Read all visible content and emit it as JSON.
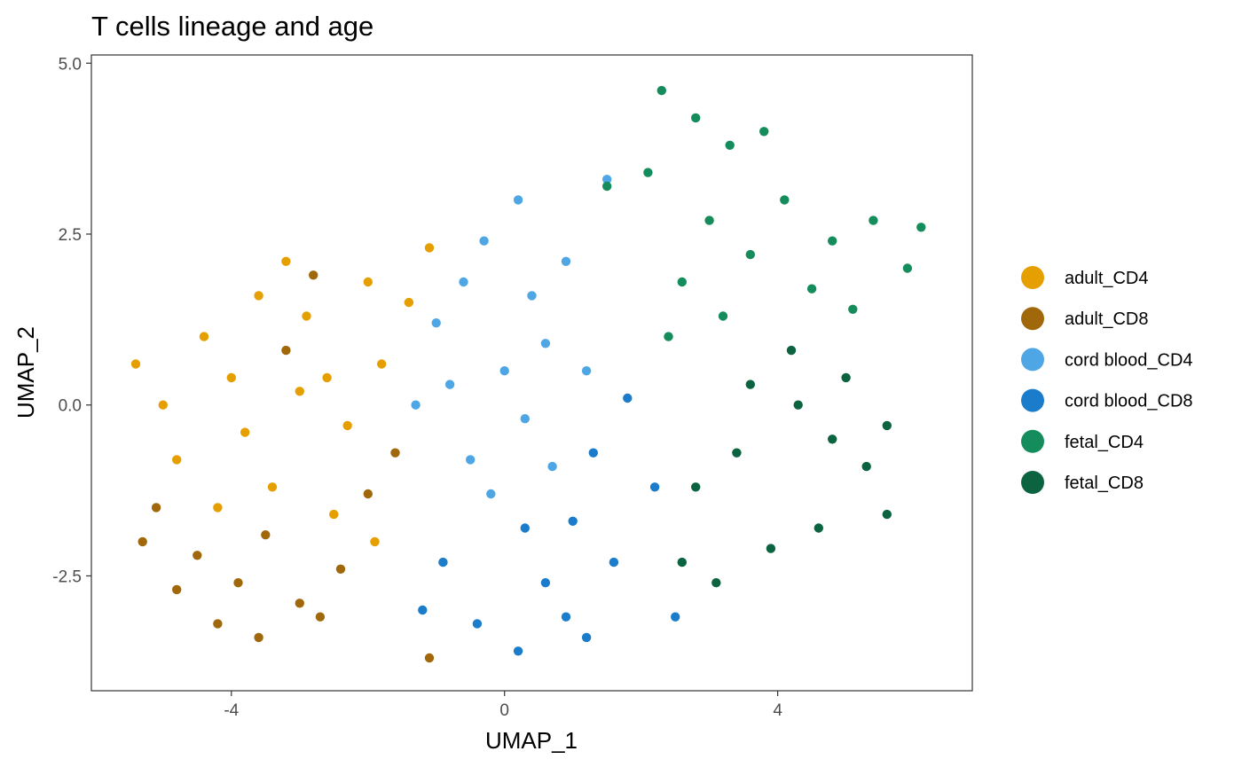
{
  "chart_data": {
    "type": "scatter",
    "title": "T cells lineage and age",
    "xlabel": "UMAP_1",
    "ylabel": "UMAP_2",
    "xlim": [
      -6.05,
      6.85
    ],
    "ylim": [
      -4.18,
      5.12
    ],
    "x_ticks": [
      {
        "value": -4,
        "label": "-4"
      },
      {
        "value": 0,
        "label": "0"
      },
      {
        "value": 4,
        "label": "4"
      }
    ],
    "y_ticks": [
      {
        "value": 5.0,
        "label": "5.0"
      },
      {
        "value": 2.5,
        "label": "2.5"
      },
      {
        "value": 0.0,
        "label": "0.0"
      },
      {
        "value": -2.5,
        "label": "-2.5"
      }
    ],
    "grid": false,
    "legend_position": "right",
    "series": [
      {
        "name": "adult_CD4",
        "color": "#E69F00",
        "points": [
          [
            -5.0,
            0.0
          ],
          [
            -4.4,
            1.0
          ],
          [
            -3.6,
            1.6
          ],
          [
            -3.2,
            2.1
          ],
          [
            -2.9,
            1.3
          ],
          [
            -2.6,
            0.4
          ],
          [
            -2.3,
            -0.3
          ],
          [
            -1.8,
            0.6
          ],
          [
            -1.4,
            1.5
          ],
          [
            -1.1,
            2.3
          ],
          [
            -4.8,
            -0.8
          ],
          [
            -4.2,
            -1.5
          ],
          [
            -3.4,
            -1.2
          ],
          [
            -2.5,
            -1.6
          ],
          [
            -1.9,
            -2.0
          ],
          [
            -5.4,
            0.6
          ],
          [
            -3.0,
            0.2
          ],
          [
            -2.0,
            1.8
          ],
          [
            -4.0,
            0.4
          ],
          [
            -3.8,
            -0.4
          ]
        ]
      },
      {
        "name": "adult_CD8",
        "color": "#A0680A",
        "points": [
          [
            -5.1,
            -1.5
          ],
          [
            -4.8,
            -2.7
          ],
          [
            -4.2,
            -3.2
          ],
          [
            -3.6,
            -3.4
          ],
          [
            -3.0,
            -2.9
          ],
          [
            -2.4,
            -2.4
          ],
          [
            -2.0,
            -1.3
          ],
          [
            -3.5,
            -1.9
          ],
          [
            -4.5,
            -2.2
          ],
          [
            -3.2,
            0.8
          ],
          [
            -2.8,
            1.9
          ],
          [
            -1.6,
            -0.7
          ],
          [
            -5.3,
            -2.0
          ],
          [
            -2.7,
            -3.1
          ],
          [
            -3.9,
            -2.6
          ],
          [
            -1.1,
            -3.7
          ]
        ]
      },
      {
        "name": "cord blood_CD4",
        "color": "#4FA6E4",
        "points": [
          [
            -1.0,
            1.2
          ],
          [
            -0.8,
            0.3
          ],
          [
            -0.5,
            -0.8
          ],
          [
            -0.3,
            2.4
          ],
          [
            0.2,
            3.0
          ],
          [
            0.4,
            1.6
          ],
          [
            0.6,
            0.9
          ],
          [
            0.3,
            -0.2
          ],
          [
            -0.2,
            -1.3
          ],
          [
            0.9,
            2.1
          ],
          [
            1.2,
            0.5
          ],
          [
            0.7,
            -0.9
          ],
          [
            -0.6,
            1.8
          ],
          [
            1.5,
            3.3
          ],
          [
            -1.3,
            0.0
          ],
          [
            0.0,
            0.5
          ]
        ]
      },
      {
        "name": "cord blood_CD8",
        "color": "#1A7CCB",
        "points": [
          [
            -0.9,
            -2.3
          ],
          [
            -0.4,
            -3.2
          ],
          [
            0.2,
            -3.6
          ],
          [
            0.6,
            -2.6
          ],
          [
            1.0,
            -1.7
          ],
          [
            1.3,
            -0.7
          ],
          [
            1.8,
            0.1
          ],
          [
            1.6,
            -2.3
          ],
          [
            0.9,
            -3.1
          ],
          [
            0.3,
            -1.8
          ],
          [
            2.2,
            -1.2
          ],
          [
            -1.2,
            -3.0
          ],
          [
            1.2,
            -3.4
          ],
          [
            2.5,
            -3.1
          ]
        ]
      },
      {
        "name": "fetal_CD4",
        "color": "#158C5C",
        "points": [
          [
            2.3,
            4.6
          ],
          [
            2.8,
            4.2
          ],
          [
            3.3,
            3.8
          ],
          [
            2.1,
            3.4
          ],
          [
            3.0,
            2.7
          ],
          [
            4.1,
            3.0
          ],
          [
            4.8,
            2.4
          ],
          [
            5.4,
            2.7
          ],
          [
            5.9,
            2.0
          ],
          [
            4.5,
            1.7
          ],
          [
            3.6,
            2.2
          ],
          [
            2.6,
            1.8
          ],
          [
            3.8,
            4.0
          ],
          [
            6.1,
            2.6
          ],
          [
            1.5,
            3.2
          ],
          [
            3.2,
            1.3
          ],
          [
            2.4,
            1.0
          ],
          [
            5.1,
            1.4
          ]
        ]
      },
      {
        "name": "fetal_CD8",
        "color": "#0B6340",
        "points": [
          [
            3.6,
            0.3
          ],
          [
            4.3,
            0.0
          ],
          [
            4.8,
            -0.5
          ],
          [
            5.3,
            -0.9
          ],
          [
            5.6,
            -1.6
          ],
          [
            4.6,
            -1.8
          ],
          [
            3.9,
            -2.1
          ],
          [
            3.1,
            -2.6
          ],
          [
            2.8,
            -1.2
          ],
          [
            4.2,
            0.8
          ],
          [
            5.0,
            0.4
          ],
          [
            5.6,
            -0.3
          ],
          [
            3.4,
            -0.7
          ],
          [
            2.6,
            -2.3
          ]
        ]
      }
    ]
  }
}
